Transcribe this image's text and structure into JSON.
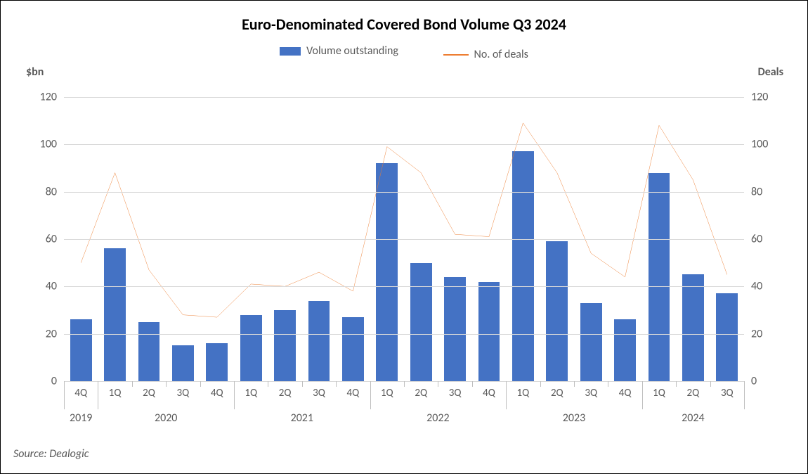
{
  "chart": {
    "type": "bar+line",
    "title": "Euro-Denominated Covered Bond Volume Q3 2024",
    "title_fontsize": 22,
    "background_color": "#ffffff",
    "border_color": "#000000",
    "grid_color": "#d9d9d9",
    "axis_color": "#bfbfbf",
    "text_color": "#595959",
    "y_left": {
      "label": "$bn",
      "min": 0,
      "max": 125,
      "tick_step": 20,
      "ticks": [
        0,
        20,
        40,
        60,
        80,
        100,
        120
      ]
    },
    "y_right": {
      "label": "Deals",
      "min": 0,
      "max": 125,
      "tick_step": 20,
      "ticks": [
        0,
        20,
        40,
        60,
        80,
        100,
        120
      ]
    },
    "legend": {
      "bar_label": "Volume outstanding",
      "line_label": "No. of deals"
    },
    "bar_color": "#4472c4",
    "line_color": "#ed7d31",
    "line_width": 2,
    "bar_width_ratio": 0.64,
    "categories": [
      {
        "q": "4Q",
        "year": "2019"
      },
      {
        "q": "1Q",
        "year": "2020"
      },
      {
        "q": "2Q",
        "year": "2020"
      },
      {
        "q": "3Q",
        "year": "2020"
      },
      {
        "q": "4Q",
        "year": "2020"
      },
      {
        "q": "1Q",
        "year": "2021"
      },
      {
        "q": "2Q",
        "year": "2021"
      },
      {
        "q": "3Q",
        "year": "2021"
      },
      {
        "q": "4Q",
        "year": "2021"
      },
      {
        "q": "1Q",
        "year": "2022"
      },
      {
        "q": "2Q",
        "year": "2022"
      },
      {
        "q": "3Q",
        "year": "2022"
      },
      {
        "q": "4Q",
        "year": "2022"
      },
      {
        "q": "1Q",
        "year": "2023"
      },
      {
        "q": "2Q",
        "year": "2023"
      },
      {
        "q": "3Q",
        "year": "2023"
      },
      {
        "q": "4Q",
        "year": "2023"
      },
      {
        "q": "1Q",
        "year": "2024"
      },
      {
        "q": "2Q",
        "year": "2024"
      },
      {
        "q": "3Q",
        "year": "2024"
      }
    ],
    "bar_values": [
      26,
      56,
      25,
      15,
      16,
      28,
      30,
      34,
      27,
      92,
      50,
      44,
      42,
      97,
      59,
      33,
      26,
      88,
      45,
      37
    ],
    "line_values": [
      50,
      88,
      47,
      28,
      27,
      41,
      40,
      46,
      38,
      99,
      88,
      62,
      61,
      109,
      88,
      54,
      44,
      108,
      85,
      45
    ],
    "year_groups": [
      {
        "label": "2019",
        "start": 0,
        "end": 0
      },
      {
        "label": "2020",
        "start": 1,
        "end": 4
      },
      {
        "label": "2021",
        "start": 5,
        "end": 8
      },
      {
        "label": "2022",
        "start": 9,
        "end": 12
      },
      {
        "label": "2023",
        "start": 13,
        "end": 16
      },
      {
        "label": "2024",
        "start": 17,
        "end": 19
      }
    ],
    "source": "Source: Dealogic"
  }
}
